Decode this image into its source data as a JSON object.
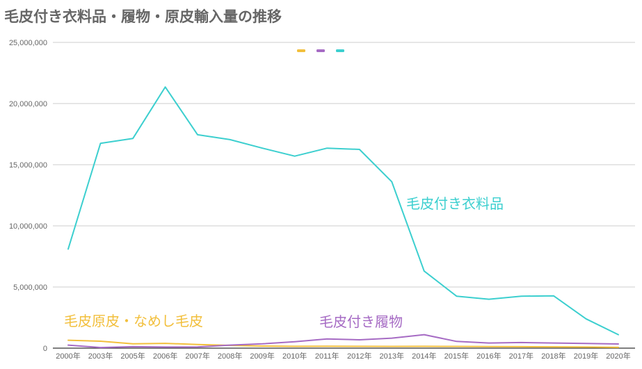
{
  "title": "毛皮付き衣料品・履物・原皮輸入量の推移",
  "colors": {
    "fur_garments": "#3CCFCF",
    "footwear": "#A66BC4",
    "raw_skins": "#F2BF3C",
    "grid": "#CCCCCC",
    "axis": "#333333"
  },
  "chart_data": {
    "type": "line",
    "categories": [
      "2000年",
      "2003年",
      "2005年",
      "2006年",
      "2007年",
      "2008年",
      "2009年",
      "2010年",
      "2011年",
      "2012年",
      "2013年",
      "2014年",
      "2015年",
      "2016年",
      "2017年",
      "2018年",
      "2019年",
      "2020年"
    ],
    "ylim": [
      0,
      25000000
    ],
    "yticks": [
      "0",
      "5,000,000",
      "10,000,000",
      "15,000,000",
      "20,000,000",
      "25,000,000"
    ],
    "grid": true,
    "legend": "top-center",
    "series": [
      {
        "key": "fur_garments",
        "name": "毛皮付き衣料品",
        "values": [
          8100000,
          16750000,
          17150000,
          21350000,
          17450000,
          17050000,
          16350000,
          15700000,
          16350000,
          16250000,
          13600000,
          6300000,
          4250000,
          4000000,
          4250000,
          4280000,
          2400000,
          1100000
        ]
      },
      {
        "key": "footwear",
        "name": "毛皮付き履物",
        "values": [
          250000,
          50000,
          120000,
          90000,
          100000,
          250000,
          350000,
          520000,
          750000,
          680000,
          820000,
          1100000,
          550000,
          420000,
          460000,
          420000,
          380000,
          340000
        ]
      },
      {
        "key": "raw_skins",
        "name": "毛皮原皮・なめし毛皮",
        "values": [
          650000,
          570000,
          350000,
          390000,
          300000,
          230000,
          170000,
          150000,
          160000,
          150000,
          140000,
          150000,
          140000,
          130000,
          120000,
          110000,
          90000,
          60000
        ]
      }
    ]
  }
}
